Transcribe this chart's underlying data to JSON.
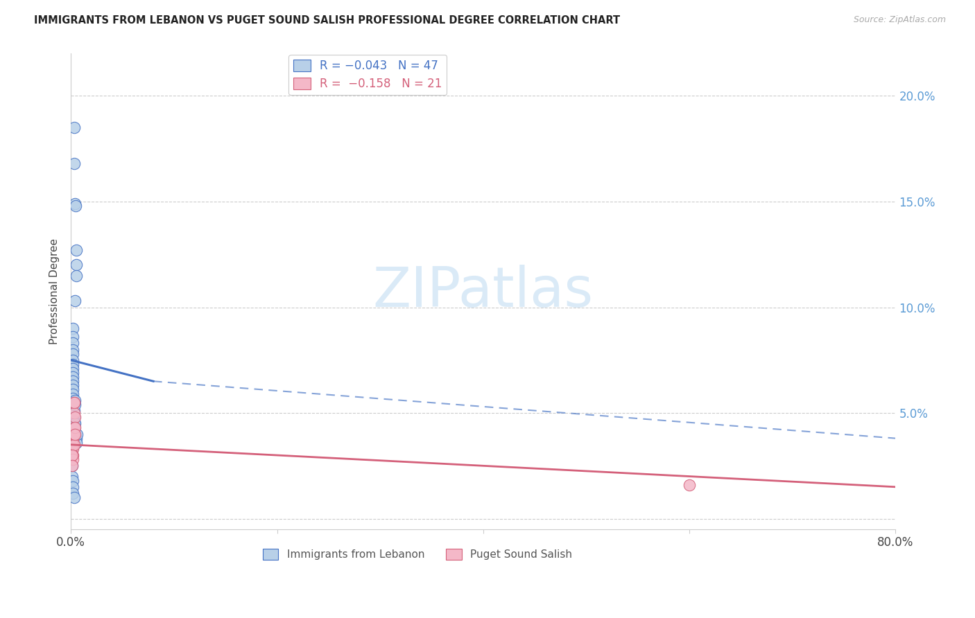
{
  "title": "IMMIGRANTS FROM LEBANON VS PUGET SOUND SALISH PROFESSIONAL DEGREE CORRELATION CHART",
  "source": "Source: ZipAtlas.com",
  "ylabel": "Professional Degree",
  "blue_color": "#b8d0e8",
  "blue_line_color": "#4472c4",
  "pink_color": "#f4b8c8",
  "pink_line_color": "#d4607a",
  "right_axis_color": "#5b9bd5",
  "watermark_color": "#daeaf7",
  "blue_scatter_x": [
    0.3,
    0.3,
    0.4,
    0.45,
    0.5,
    0.5,
    0.55,
    0.4,
    0.2,
    0.2,
    0.2,
    0.2,
    0.2,
    0.2,
    0.2,
    0.2,
    0.2,
    0.2,
    0.2,
    0.2,
    0.2,
    0.2,
    0.2,
    0.2,
    0.2,
    0.3,
    0.3,
    0.3,
    0.3,
    0.3,
    0.4,
    0.4,
    0.4,
    0.5,
    0.5,
    0.6,
    0.1,
    0.1,
    0.1,
    0.1,
    0.2,
    0.2,
    0.2,
    0.3,
    0.3,
    0.3,
    0.4
  ],
  "blue_scatter_y": [
    18.5,
    16.8,
    14.9,
    14.8,
    12.7,
    12.0,
    11.5,
    10.3,
    9.0,
    8.6,
    8.3,
    8.0,
    7.8,
    7.5,
    7.3,
    7.1,
    6.9,
    6.7,
    6.5,
    6.3,
    6.1,
    5.9,
    5.7,
    5.5,
    5.3,
    5.1,
    4.8,
    4.6,
    4.4,
    4.2,
    5.6,
    5.4,
    4.0,
    3.8,
    3.6,
    4.0,
    3.3,
    3.0,
    2.5,
    2.0,
    1.8,
    1.5,
    1.2,
    4.5,
    4.3,
    1.0,
    4.5
  ],
  "pink_scatter_x": [
    0.2,
    0.2,
    0.2,
    0.2,
    0.2,
    0.2,
    0.2,
    0.2,
    0.2,
    0.3,
    0.3,
    0.3,
    0.3,
    0.3,
    0.3,
    0.4,
    0.4,
    0.4,
    0.1,
    0.1,
    60.0
  ],
  "pink_scatter_y": [
    4.0,
    3.8,
    3.6,
    3.3,
    3.0,
    4.0,
    3.7,
    3.5,
    2.8,
    5.5,
    5.0,
    5.5,
    4.3,
    4.0,
    3.5,
    4.8,
    4.3,
    4.0,
    3.0,
    2.5,
    1.6
  ],
  "blue_line_x0": 0.0,
  "blue_line_x1": 8.0,
  "blue_line_y0": 7.5,
  "blue_line_y1": 6.5,
  "blue_dash_x0": 8.0,
  "blue_dash_x1": 80.0,
  "blue_dash_y0": 6.5,
  "blue_dash_y1": 3.8,
  "pink_line_x0": 0.0,
  "pink_line_x1": 80.0,
  "pink_line_y0": 3.5,
  "pink_line_y1": 1.5,
  "xlim": [
    0.0,
    80.0
  ],
  "ylim": [
    -0.5,
    22.0
  ],
  "yticks": [
    0.0,
    5.0,
    10.0,
    15.0,
    20.0
  ],
  "xticks": [
    0.0,
    20.0,
    40.0,
    60.0,
    80.0
  ],
  "xtick_labels": [
    "0.0%",
    "",
    "",
    "",
    "80.0%"
  ],
  "right_ytick_labels": [
    "",
    "5.0%",
    "10.0%",
    "15.0%",
    "20.0%"
  ]
}
